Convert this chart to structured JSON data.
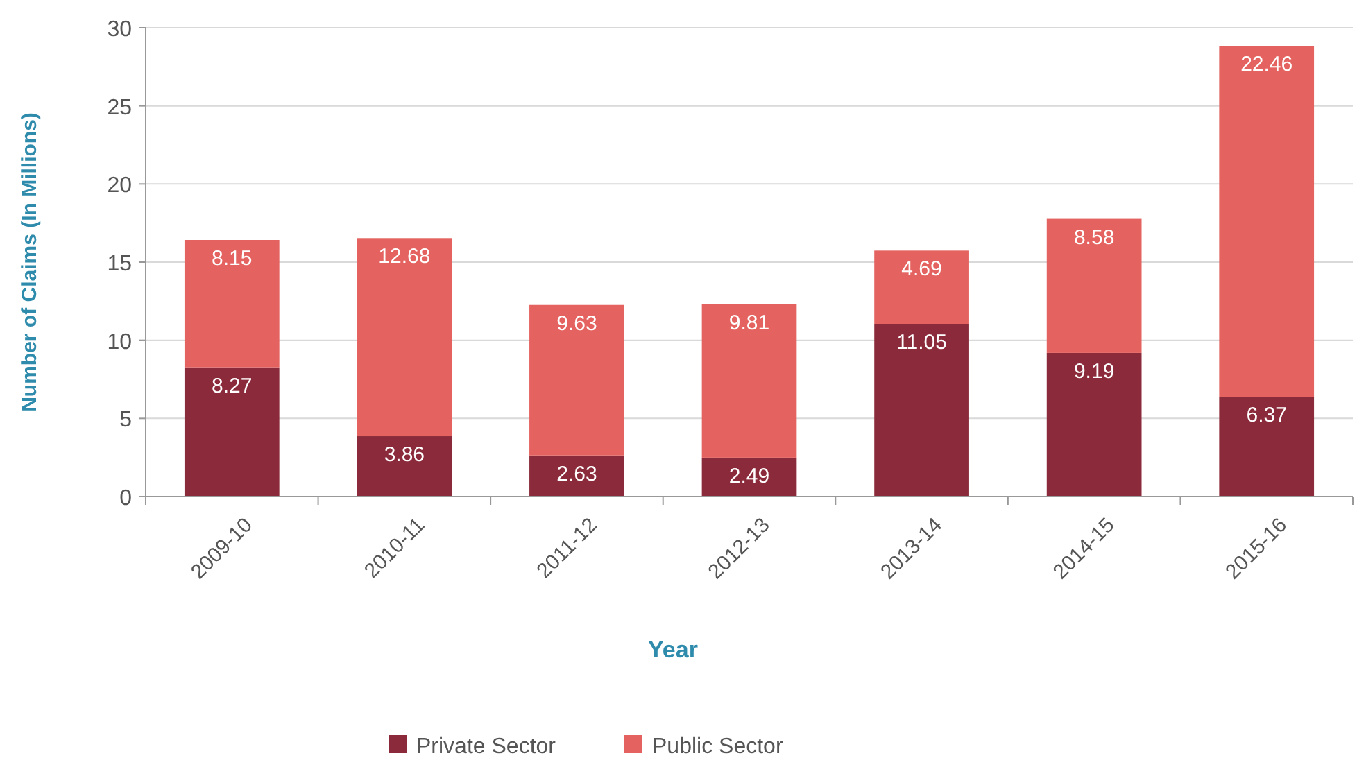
{
  "chart_data": {
    "type": "bar",
    "stacked": true,
    "xlabel": "Year",
    "ylabel": "Number of Claims (In Millions)",
    "categories": [
      "2009-10",
      "2010-11",
      "2011-12",
      "2012-13",
      "2013-14",
      "2014-15",
      "2015-16"
    ],
    "series": [
      {
        "name": "Private Sector",
        "color": "#8b2a3a",
        "values": [
          8.27,
          3.86,
          2.63,
          2.49,
          11.05,
          9.19,
          6.37
        ]
      },
      {
        "name": "Public Sector",
        "color": "#e4625f",
        "values": [
          8.15,
          12.68,
          9.63,
          9.81,
          4.69,
          8.58,
          22.46
        ]
      }
    ],
    "ylim": [
      0,
      30
    ],
    "yticks": [
      0,
      5,
      10,
      15,
      20,
      25,
      30
    ],
    "grid": "y",
    "legend": "bottom",
    "data_labels": true
  }
}
